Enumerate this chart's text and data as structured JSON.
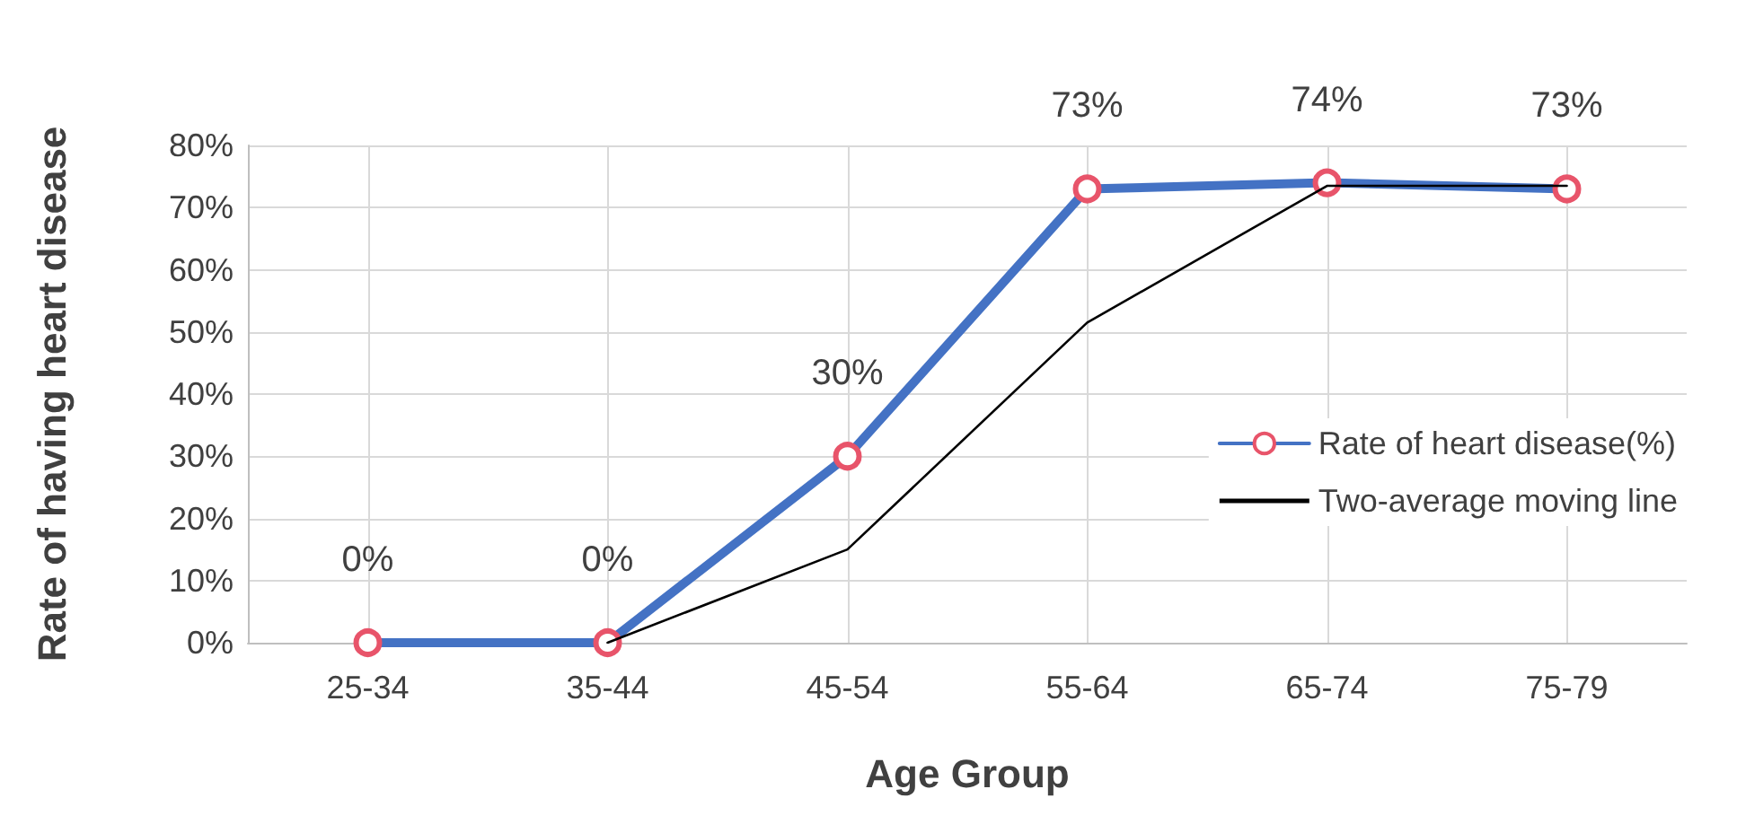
{
  "chart_data": {
    "type": "line",
    "xlabel": "Age Group",
    "ylabel": "Rate of having heart disease",
    "categories": [
      "25-34",
      "35-44",
      "45-54",
      "55-64",
      "65-74",
      "75-79"
    ],
    "series": [
      {
        "name": "Rate of heart disease(%)",
        "color": "#4472c4",
        "values": [
          0,
          0,
          30,
          73,
          74,
          73
        ],
        "marker": "circle",
        "value_labels": [
          "0%",
          "0%",
          "30%",
          "73%",
          "74%",
          "73%"
        ]
      },
      {
        "name": "Two-average moving line",
        "color": "#000000",
        "values": [
          null,
          0,
          15,
          51.5,
          73.5,
          73.5
        ],
        "marker": "none"
      }
    ],
    "ylim": [
      0,
      80
    ],
    "yticks": [
      {
        "value": 0,
        "label": "0%"
      },
      {
        "value": 10,
        "label": "10%"
      },
      {
        "value": 20,
        "label": "20%"
      },
      {
        "value": 30,
        "label": "30%"
      },
      {
        "value": 40,
        "label": "40%"
      },
      {
        "value": 50,
        "label": "50%"
      },
      {
        "value": 60,
        "label": "60%"
      },
      {
        "value": 70,
        "label": "70%"
      },
      {
        "value": 80,
        "label": "80%"
      }
    ],
    "grid": true,
    "legend": "right",
    "line_style": "solid"
  }
}
